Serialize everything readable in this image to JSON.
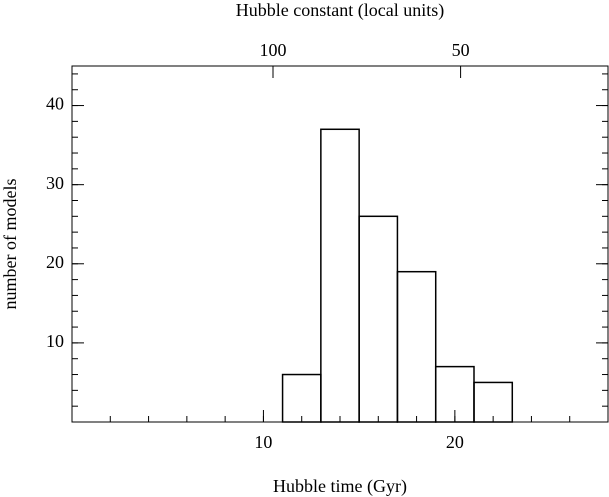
{
  "chart_data": {
    "type": "histogram",
    "xlabel": "Hubble time (Gyr)",
    "ylabel": "number of models",
    "x2label": "Hubble constant (local units)",
    "bins": [
      11,
      13,
      15,
      17,
      19,
      21,
      23
    ],
    "values": [
      6,
      37,
      26,
      19,
      7,
      5
    ],
    "color": "#000000",
    "xlim": [
      0,
      28
    ],
    "xticks": [
      10,
      20
    ],
    "xminor": 2,
    "ylim": [
      0,
      45
    ],
    "yticks": [
      10,
      20,
      30,
      40
    ],
    "yminor": 2,
    "x2ticks": [
      {
        "value": 10.5,
        "label": "100"
      },
      {
        "value": 20.3,
        "label": "50"
      }
    ]
  }
}
